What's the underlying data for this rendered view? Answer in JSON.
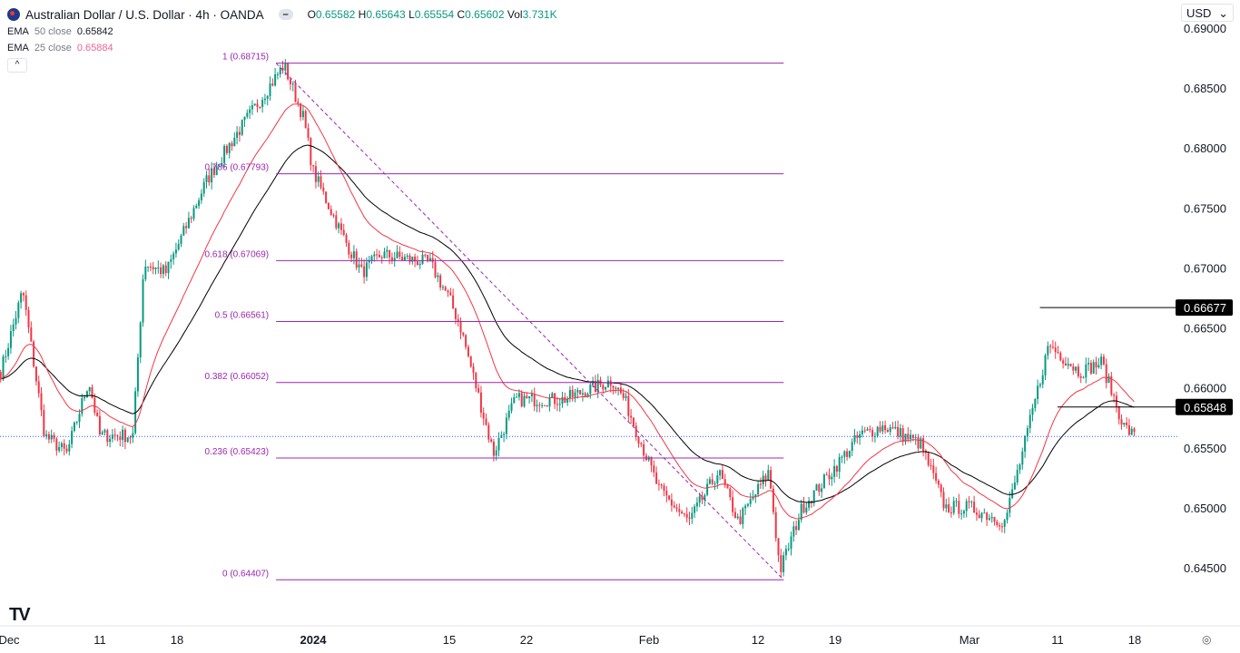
{
  "header": {
    "title": "Australian Dollar / U.S. Dollar · 4h · OANDA",
    "ohlc": {
      "o_label": "O",
      "o": "0.65582",
      "h_label": "H",
      "h": "0.65643",
      "l_label": "L",
      "l": "0.65554",
      "c_label": "C",
      "c": "0.65602",
      "vol_label": "Vol",
      "vol": "3.731K"
    },
    "ema50": {
      "name": "EMA",
      "params": "50 close",
      "value": "0.65842"
    },
    "ema25": {
      "name": "EMA",
      "params": "25 close",
      "value": "0.65884"
    },
    "collapse": "^",
    "currency": "USD",
    "currency_caret": "⌄"
  },
  "colors": {
    "up": "#089981",
    "down": "#f23645",
    "ema50": "#000000",
    "ema25": "#f23645",
    "fib": "#9c27b0",
    "price_line": "#2962ff"
  },
  "icons": [
    "flag-icon",
    "minus-icon",
    "chevron-up-icon",
    "chevron-down-icon",
    "tradingview-logo",
    "eye-icon"
  ],
  "logo": "TV",
  "chart_data": {
    "type": "candlestick",
    "timeframe": "4h",
    "ylim": [
      0.6435,
      0.6905
    ],
    "y_ticks": [
      "0.69000",
      "0.68500",
      "0.68000",
      "0.67500",
      "0.67000",
      "0.66500",
      "0.66000",
      "0.65500",
      "0.65000",
      "0.64500"
    ],
    "x_ticks": [
      {
        "label": "Dec",
        "date": "2023-12-04"
      },
      {
        "label": "11",
        "date": "2023-12-11"
      },
      {
        "label": "18",
        "date": "2023-12-18"
      },
      {
        "label": "2024",
        "date": "2024-01-01"
      },
      {
        "label": "15",
        "date": "2024-01-15"
      },
      {
        "label": "22",
        "date": "2024-01-22"
      },
      {
        "label": "Feb",
        "date": "2024-02-01"
      },
      {
        "label": "12",
        "date": "2024-02-12"
      },
      {
        "label": "19",
        "date": "2024-02-19"
      },
      {
        "label": "Mar",
        "date": "2024-03-01"
      },
      {
        "label": "11",
        "date": "2024-03-11"
      },
      {
        "label": "18",
        "date": "2024-03-18"
      }
    ],
    "price_path": [
      [
        "2023-12-02",
        0.6614
      ],
      [
        "2023-12-04",
        0.6682
      ],
      [
        "2023-12-06",
        0.6561
      ],
      [
        "2023-12-08",
        0.6546
      ],
      [
        "2023-12-10",
        0.6607
      ],
      [
        "2023-12-11",
        0.6561
      ],
      [
        "2023-12-14",
        0.6561
      ],
      [
        "2023-12-15",
        0.6705
      ],
      [
        "2023-12-17",
        0.6697
      ],
      [
        "2023-12-21",
        0.6773
      ],
      [
        "2023-12-24",
        0.6811
      ],
      [
        "2023-12-29",
        0.687
      ],
      [
        "2023-12-31",
        0.6826
      ],
      [
        "2024-01-01",
        0.6781
      ],
      [
        "2024-01-04",
        0.6728
      ],
      [
        "2024-01-06",
        0.6697
      ],
      [
        "2024-01-08",
        0.6712
      ],
      [
        "2024-01-13",
        0.6705
      ],
      [
        "2024-01-15",
        0.6675
      ],
      [
        "2024-01-16",
        0.6652
      ],
      [
        "2024-01-19",
        0.6546
      ],
      [
        "2024-01-21",
        0.6591
      ],
      [
        "2024-01-25",
        0.6591
      ],
      [
        "2024-01-29",
        0.6607
      ],
      [
        "2024-01-30",
        0.6591
      ],
      [
        "2024-02-02",
        0.6516
      ],
      [
        "2024-02-05",
        0.6489
      ],
      [
        "2024-02-08",
        0.6531
      ],
      [
        "2024-02-10",
        0.6489
      ],
      [
        "2024-02-13",
        0.6531
      ],
      [
        "2024-02-14",
        0.6448
      ],
      [
        "2024-02-16",
        0.6501
      ],
      [
        "2024-02-18",
        0.6523
      ],
      [
        "2024-02-21",
        0.6561
      ],
      [
        "2024-02-23",
        0.6569
      ],
      [
        "2024-02-26",
        0.6554
      ],
      [
        "2024-02-28",
        0.6501
      ],
      [
        "2024-03-01",
        0.6501
      ],
      [
        "2024-03-05",
        0.6489
      ],
      [
        "2024-03-07",
        0.6546
      ],
      [
        "2024-03-10",
        0.6637
      ],
      [
        "2024-03-13",
        0.6614
      ],
      [
        "2024-03-15",
        0.6622
      ],
      [
        "2024-03-17",
        0.6569
      ],
      [
        "2024-03-18",
        0.656
      ]
    ],
    "fib_retracement": {
      "from": {
        "date": "2023-12-28",
        "price": 0.68715
      },
      "to": {
        "date": "2024-02-14",
        "price": 0.64407
      },
      "levels": [
        {
          "label": "1 (0.68715)",
          "price": 0.68715
        },
        {
          "label": "0.786 (0.67793)",
          "price": 0.67793
        },
        {
          "label": "0.618 (0.67069)",
          "price": 0.67069
        },
        {
          "label": "0.5 (0.66561)",
          "price": 0.66561
        },
        {
          "label": "0.382 (0.66052)",
          "price": 0.66052
        },
        {
          "label": "0.236 (0.65423)",
          "price": 0.65423
        },
        {
          "label": "0 (0.64407)",
          "price": 0.64407
        }
      ]
    },
    "horizontal_lines": [
      {
        "price": 0.66677,
        "label": "0.66677",
        "from": "2024-03-09"
      },
      {
        "price": 0.65848,
        "label": "0.65848",
        "from": "2024-03-11"
      }
    ],
    "current_price": 0.65602,
    "indicators": [
      {
        "type": "EMA",
        "length": 50
      },
      {
        "type": "EMA",
        "length": 25
      }
    ]
  }
}
